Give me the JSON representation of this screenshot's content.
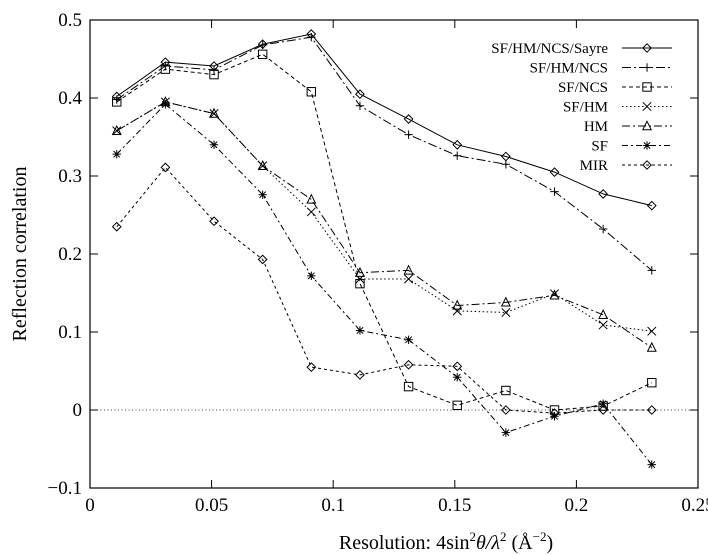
{
  "chart_data": {
    "type": "line",
    "xlabel_prefix": "Resolution: 4sin",
    "xlabel_sup1": "2",
    "xlabel_theta": "θ/λ",
    "xlabel_sup2": "2",
    "xlabel_unit": " (Å",
    "xlabel_unit_sup": "−2",
    "xlabel_close": ")",
    "ylabel": "Reflection correlation",
    "xlim": [
      0,
      0.25
    ],
    "ylim": [
      -0.1,
      0.5
    ],
    "xticks": [
      0,
      0.05,
      0.1,
      0.15,
      0.2,
      0.25
    ],
    "xtick_labels": [
      "0",
      "0.05",
      "0.1",
      "0.15",
      "0.2",
      "0.25"
    ],
    "yticks": [
      -0.1,
      0,
      0.1,
      0.2,
      0.3,
      0.4,
      0.5
    ],
    "ytick_labels": [
      "−0.1",
      "0",
      "0.1",
      "0.2",
      "0.3",
      "0.4",
      "0.5"
    ],
    "zero_line": true,
    "legend_position": "top-right",
    "x": [
      0.011,
      0.031,
      0.051,
      0.071,
      0.091,
      0.111,
      0.131,
      0.151,
      0.171,
      0.191,
      0.211,
      0.231
    ],
    "series": [
      {
        "name": "SF/HM/NCS/Sayre",
        "marker": "diamond",
        "dash": "",
        "values": [
          0.402,
          0.446,
          0.441,
          0.469,
          0.482,
          0.405,
          0.373,
          0.34,
          0.325,
          0.305,
          0.277,
          0.262
        ]
      },
      {
        "name": "SF/HM/NCS",
        "marker": "plus",
        "dash": "9 3 2 3",
        "values": [
          0.398,
          0.441,
          0.436,
          0.468,
          0.478,
          0.39,
          0.353,
          0.326,
          0.315,
          0.28,
          0.232,
          0.179
        ]
      },
      {
        "name": "SF/NCS",
        "marker": "square",
        "dash": "4 3",
        "values": [
          0.395,
          0.437,
          0.43,
          0.456,
          0.408,
          0.162,
          0.03,
          0.006,
          0.025,
          0.0,
          0.005,
          0.035
        ]
      },
      {
        "name": "SF/HM",
        "marker": "cross",
        "dash": "1.5 2.5",
        "values": [
          0.358,
          0.395,
          0.38,
          0.313,
          0.254,
          0.168,
          0.168,
          0.127,
          0.125,
          0.149,
          0.109,
          0.101
        ]
      },
      {
        "name": "HM",
        "marker": "triangle",
        "dash": "8 3 2 3",
        "values": [
          0.358,
          0.395,
          0.38,
          0.313,
          0.27,
          0.176,
          0.179,
          0.134,
          0.138,
          0.147,
          0.122,
          0.08
        ]
      },
      {
        "name": "SF",
        "marker": "star",
        "dash": "6 3 2 3",
        "values": [
          0.328,
          0.392,
          0.34,
          0.276,
          0.172,
          0.102,
          0.09,
          0.042,
          -0.029,
          -0.008,
          0.008,
          -0.07
        ]
      },
      {
        "name": "MIR",
        "marker": "diamond",
        "dash": "3 3",
        "values": [
          0.235,
          0.311,
          0.242,
          0.193,
          0.055,
          0.045,
          0.058,
          0.056,
          0.0,
          -0.004,
          0.0,
          0.0
        ]
      }
    ]
  }
}
